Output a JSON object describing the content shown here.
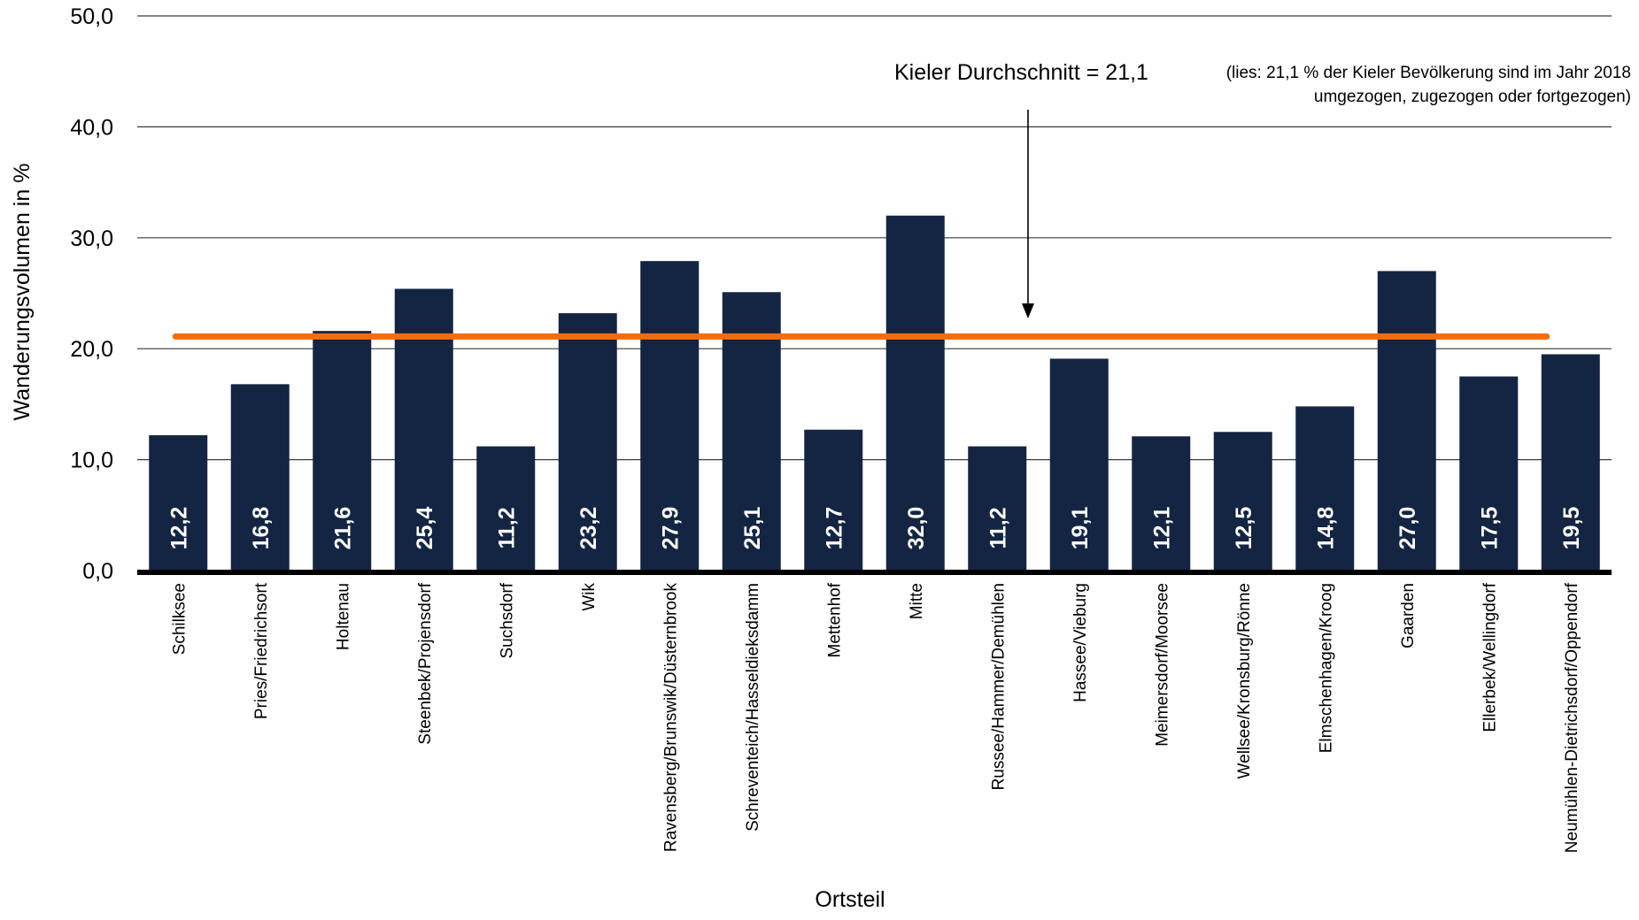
{
  "chart_data": {
    "type": "bar",
    "categories": [
      "Schilksee",
      "Pries/Friedrichsort",
      "Holtenau",
      "Steenbek/Projensdorf",
      "Suchsdorf",
      "Wik",
      "Ravensberg/Brunswik/Düsternbrook",
      "Schreventeich/Hasseldieksdamm",
      "Mettenhof",
      "Mitte",
      "Russee/Hammer/Demühlen",
      "Hassee/Vieburg",
      "Meimersdorf/Moorsee",
      "Wellsee/Kronsburg/Rönne",
      "Elmschenhagen/Kroog",
      "Gaarden",
      "Ellerbek/Wellingdorf",
      "Neumühlen-Dietrichsdorf/Oppendorf"
    ],
    "values": [
      12.2,
      16.8,
      21.6,
      25.4,
      11.2,
      23.2,
      27.9,
      25.1,
      12.7,
      32.0,
      11.2,
      19.1,
      12.1,
      12.5,
      14.8,
      27.0,
      17.5,
      19.5
    ],
    "value_labels": [
      "12,2",
      "16,8",
      "21,6",
      "25,4",
      "11,2",
      "23,2",
      "27,9",
      "25,1",
      "12,7",
      "32,0",
      "11,2",
      "19,1",
      "12,1",
      "12,5",
      "14,8",
      "27,0",
      "17,5",
      "19,5"
    ],
    "xlabel": "Ortsteil",
    "ylabel": "Wanderungsvolumen in %",
    "ylim": [
      0,
      50
    ],
    "yticks": [
      0,
      10,
      20,
      30,
      40,
      50
    ],
    "ytick_labels": [
      "0,0",
      "10,0",
      "20,0",
      "30,0",
      "40,0",
      "50,0"
    ],
    "grid": "horizontal",
    "reference_line": {
      "value": 21.1,
      "color": "#f26d10"
    },
    "annotation": {
      "main": "Kieler Durchschnitt = 21,1",
      "detail_line1": "(lies: 21,1 % der Kieler Bevölkerung sind im Jahr 2018",
      "detail_line2": "umgezogen, zugezogen oder fortgezogen)",
      "arrow_x_value": 21.1
    },
    "colors": {
      "bar": "#132542",
      "bar_label": "#ffffff",
      "gridline": "#3a3a3a",
      "axis": "#000000",
      "reference_line": "#f26d10"
    }
  }
}
